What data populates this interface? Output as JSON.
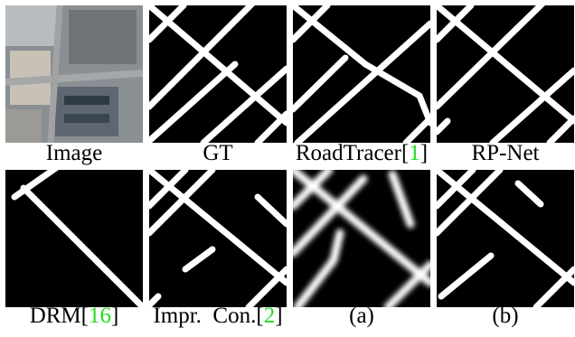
{
  "panels": [
    {
      "caption": {
        "before": "Image"
      }
    },
    {
      "caption": {
        "before": "GT"
      }
    },
    {
      "caption": {
        "before": "RoadTracer[",
        "cite": "1",
        "after": "]"
      }
    },
    {
      "caption": {
        "before": "RP-Net"
      }
    },
    {
      "caption": {
        "before": "DRM[",
        "cite": "16",
        "after": "]"
      }
    },
    {
      "caption": {
        "before": "Impr.  Con.[",
        "cite": "2",
        "after": "]"
      }
    },
    {
      "caption": {
        "before": "(a)"
      }
    },
    {
      "caption": {
        "before": "(b)"
      }
    }
  ],
  "cite_color": "#22dd22"
}
